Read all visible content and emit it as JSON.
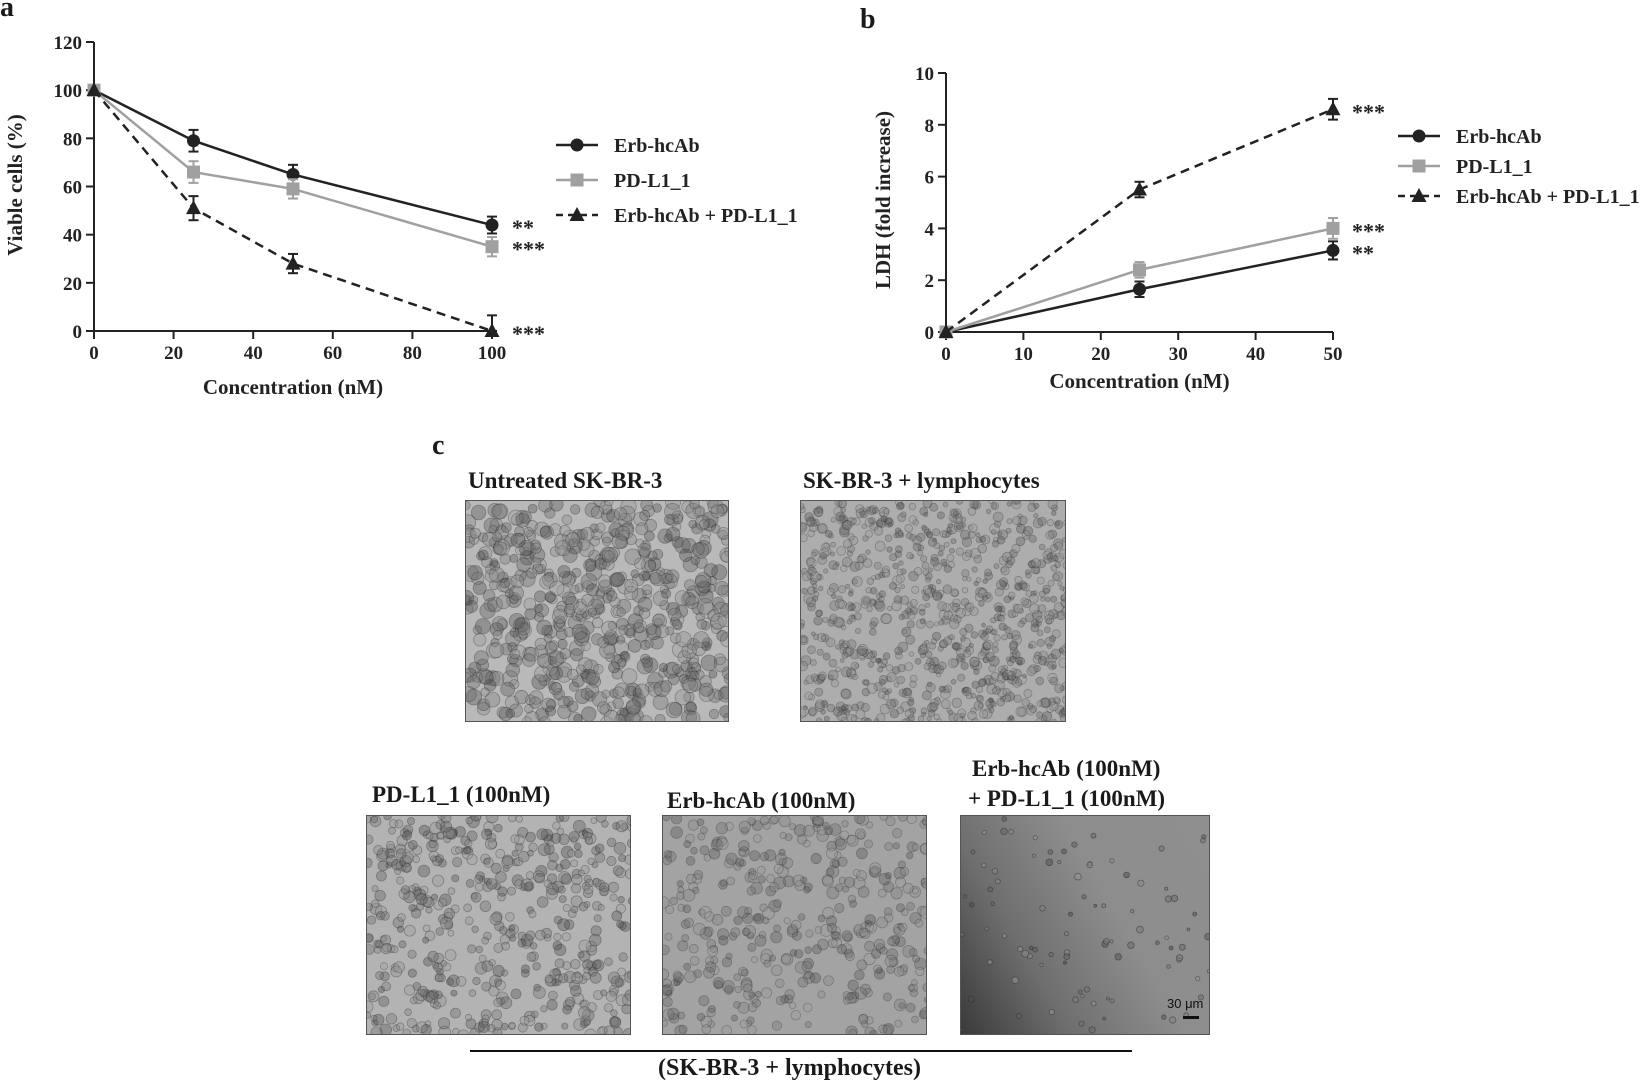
{
  "panel_labels": {
    "a": "a",
    "b": "b",
    "c": "c"
  },
  "colors": {
    "erb": "#222222",
    "pdl1": "#a0a0a0",
    "combo": "#222222"
  },
  "chart_data": [
    {
      "type": "line",
      "panel": "a",
      "xlabel": "Concentration (nM)",
      "ylabel": "Viable cells (%)",
      "xlim": [
        0,
        100
      ],
      "ylim": [
        0,
        120
      ],
      "xticks": [
        0,
        20,
        40,
        60,
        80,
        100
      ],
      "yticks": [
        0,
        20,
        40,
        60,
        80,
        100,
        120
      ],
      "x": [
        0,
        25,
        50,
        100
      ],
      "series": [
        {
          "name": "Erb-hcAb",
          "values": [
            100,
            79,
            65,
            44
          ],
          "errors": [
            0,
            4.5,
            4,
            3.5
          ],
          "marker": "circle",
          "dash": "solid",
          "color": "#222222",
          "significance": "**"
        },
        {
          "name": "PD-L1_1",
          "values": [
            100,
            66,
            59,
            35
          ],
          "errors": [
            0,
            4.5,
            4,
            4
          ],
          "marker": "square",
          "dash": "solid",
          "color": "#a0a0a0",
          "significance": "***"
        },
        {
          "name": "Erb-hcAb + PD-L1_1",
          "values": [
            100,
            51,
            28,
            0
          ],
          "errors": [
            0,
            5,
            4,
            6.5
          ],
          "marker": "triangle",
          "dash": "dashed",
          "color": "#222222",
          "significance": "***"
        }
      ],
      "legend_position": "right"
    },
    {
      "type": "line",
      "panel": "b",
      "xlabel": "Concentration (nM)",
      "ylabel": "LDH (fold increase)",
      "xlim": [
        0,
        50
      ],
      "ylim": [
        0,
        10
      ],
      "xticks": [
        0,
        10,
        20,
        30,
        40,
        50
      ],
      "yticks": [
        0,
        2,
        4,
        6,
        8,
        10
      ],
      "x": [
        0,
        25,
        50
      ],
      "series": [
        {
          "name": "Erb-hcAb",
          "values": [
            0,
            1.65,
            3.15
          ],
          "errors": [
            0,
            0.3,
            0.35
          ],
          "marker": "circle",
          "dash": "solid",
          "color": "#222222",
          "significance": "**"
        },
        {
          "name": "PD-L1_1",
          "values": [
            0,
            2.4,
            4.0
          ],
          "errors": [
            0,
            0.3,
            0.4
          ],
          "marker": "square",
          "dash": "solid",
          "color": "#a0a0a0",
          "significance": "***"
        },
        {
          "name": "Erb-hcAb + PD-L1_1",
          "values": [
            0,
            5.5,
            8.6
          ],
          "errors": [
            0,
            0.3,
            0.4
          ],
          "marker": "triangle",
          "dash": "dashed",
          "color": "#222222",
          "significance": "***"
        }
      ],
      "legend_position": "right"
    }
  ],
  "micrographs": {
    "untreated": {
      "title": "Untreated SK-BR-3"
    },
    "lymph": {
      "title": "SK-BR-3 + lymphocytes"
    },
    "pdl1": {
      "title": "PD-L1_1 (100nM)"
    },
    "erb": {
      "title": "Erb-hcAb (100nM)"
    },
    "combo": {
      "title_line1": "Erb-hcAb (100nM)",
      "title_line2": "+ PD-L1_1 (100nM)"
    },
    "scale_bar": "30 μm",
    "bracket_label": "(SK-BR-3 + lymphocytes)"
  }
}
